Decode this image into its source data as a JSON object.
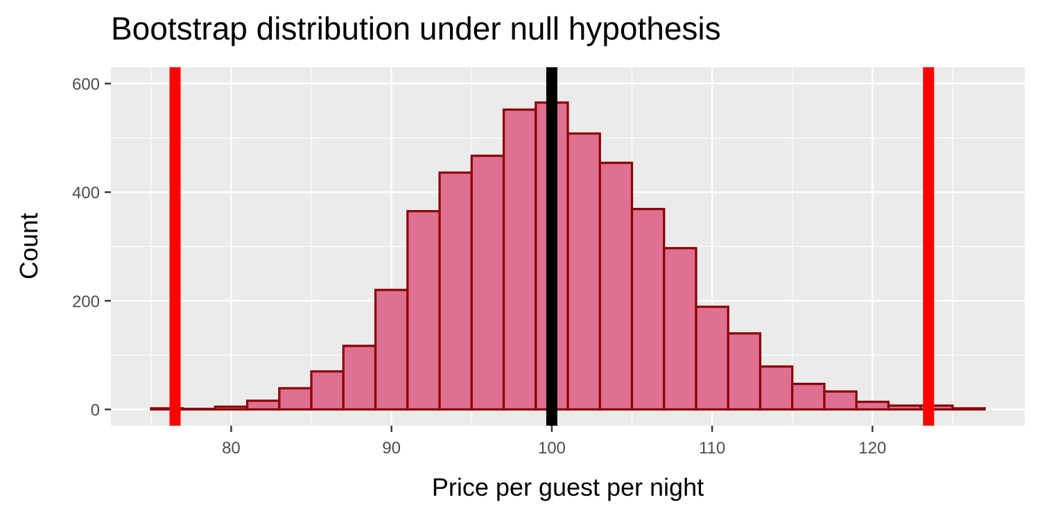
{
  "chart_data": {
    "type": "bar",
    "title": "Bootstrap distribution under null hypothesis",
    "xlabel": "Price per guest per night",
    "ylabel": "Count",
    "xlim": [
      72.5,
      129.5
    ],
    "ylim": [
      -30,
      630
    ],
    "x_ticks": [
      80,
      90,
      100,
      110,
      120
    ],
    "x_minor_ticks": [
      75,
      85,
      95,
      105,
      115,
      125
    ],
    "y_ticks": [
      0,
      200,
      400,
      600
    ],
    "y_minor_ticks": [
      100,
      300,
      500
    ],
    "bin_width": 2,
    "bins": [
      {
        "center": 76,
        "count": 2
      },
      {
        "center": 78,
        "count": 1
      },
      {
        "center": 80,
        "count": 5
      },
      {
        "center": 82,
        "count": 16
      },
      {
        "center": 84,
        "count": 39
      },
      {
        "center": 86,
        "count": 70
      },
      {
        "center": 88,
        "count": 117
      },
      {
        "center": 90,
        "count": 220
      },
      {
        "center": 92,
        "count": 365
      },
      {
        "center": 94,
        "count": 436
      },
      {
        "center": 96,
        "count": 467
      },
      {
        "center": 98,
        "count": 552
      },
      {
        "center": 100,
        "count": 565
      },
      {
        "center": 102,
        "count": 508
      },
      {
        "center": 104,
        "count": 454
      },
      {
        "center": 106,
        "count": 369
      },
      {
        "center": 108,
        "count": 297
      },
      {
        "center": 110,
        "count": 189
      },
      {
        "center": 112,
        "count": 140
      },
      {
        "center": 114,
        "count": 79
      },
      {
        "center": 116,
        "count": 47
      },
      {
        "center": 118,
        "count": 33
      },
      {
        "center": 120,
        "count": 14
      },
      {
        "center": 122,
        "count": 7
      },
      {
        "center": 124,
        "count": 7
      },
      {
        "center": 126,
        "count": 2
      }
    ],
    "vlines": [
      {
        "x": 100,
        "color": "#000000"
      },
      {
        "x": 76.5,
        "color": "#ff0000"
      },
      {
        "x": 123.5,
        "color": "#ff0000"
      }
    ],
    "bar_fill": "#de7092",
    "bar_outline": "#8b0000",
    "panel_background": "#ebebeb",
    "grid": true,
    "legend": "none"
  }
}
